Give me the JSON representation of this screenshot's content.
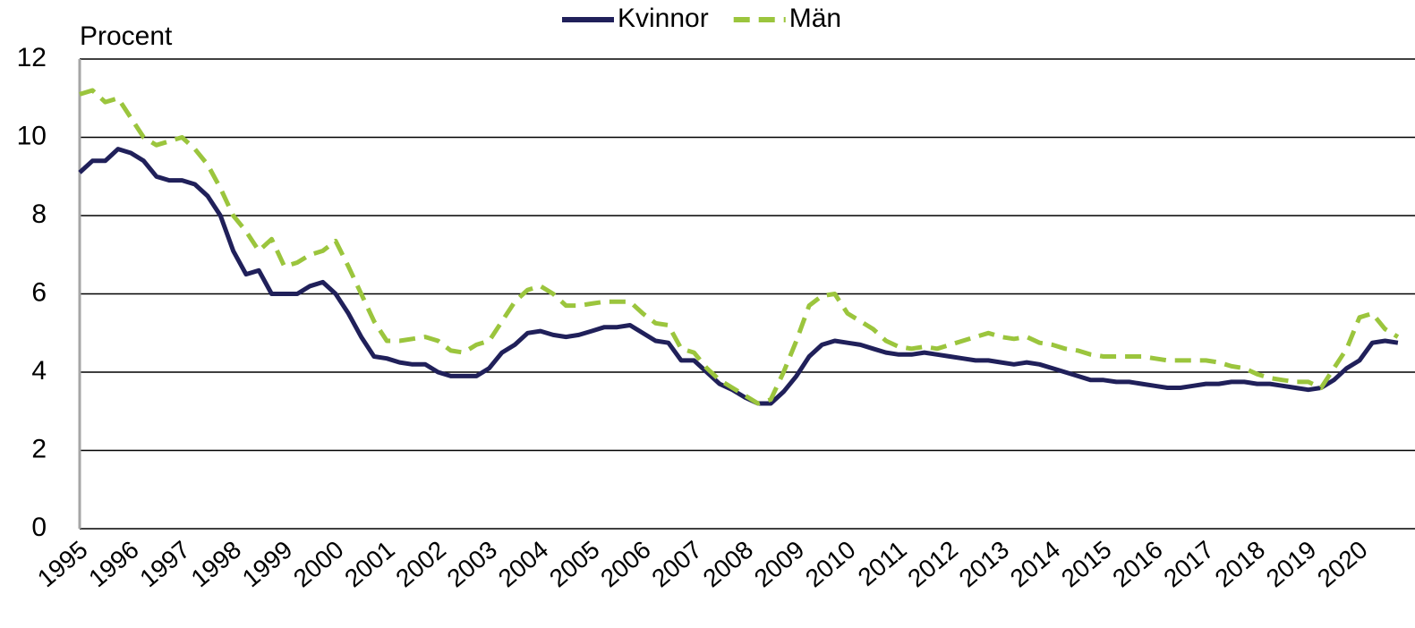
{
  "chart_data": {
    "type": "line",
    "y_label": "Procent",
    "categories": [
      "1995",
      null,
      null,
      null,
      "1996",
      null,
      null,
      null,
      "1997",
      null,
      null,
      null,
      "1998",
      null,
      null,
      null,
      "1999",
      null,
      null,
      null,
      "2000",
      null,
      null,
      null,
      "2001",
      null,
      null,
      null,
      "2002",
      null,
      null,
      null,
      "2003",
      null,
      null,
      null,
      "2004",
      null,
      null,
      null,
      "2005",
      null,
      null,
      null,
      "2006",
      null,
      null,
      null,
      "2007",
      null,
      null,
      null,
      "2008",
      null,
      null,
      null,
      "2009",
      null,
      null,
      null,
      "2010",
      null,
      null,
      null,
      "2011",
      null,
      null,
      null,
      "2012",
      null,
      null,
      null,
      "2013",
      null,
      null,
      null,
      "2014",
      null,
      null,
      null,
      "2015",
      null,
      null,
      null,
      "2016",
      null,
      null,
      null,
      "2017",
      null,
      null,
      null,
      "2018",
      null,
      null,
      null,
      "2019",
      null,
      null,
      null,
      "2020",
      null,
      null,
      null
    ],
    "series": [
      {
        "name": "Kvinnor",
        "color": "#20205a",
        "dash": false,
        "values": [
          9.1,
          9.4,
          9.4,
          9.7,
          9.6,
          9.4,
          9.0,
          8.9,
          8.9,
          8.8,
          8.5,
          8.0,
          7.1,
          6.5,
          6.6,
          6.0,
          6.0,
          6.0,
          6.2,
          6.3,
          6.0,
          5.5,
          4.9,
          4.4,
          4.35,
          4.25,
          4.2,
          4.2,
          4.0,
          3.9,
          3.9,
          3.9,
          4.1,
          4.5,
          4.7,
          5.0,
          5.05,
          4.95,
          4.9,
          4.95,
          5.05,
          5.15,
          5.15,
          5.2,
          5.0,
          4.8,
          4.75,
          4.3,
          4.3,
          4.0,
          3.7,
          3.55,
          3.35,
          3.2,
          3.2,
          3.5,
          3.9,
          4.4,
          4.7,
          4.8,
          4.75,
          4.7,
          4.6,
          4.5,
          4.45,
          4.45,
          4.5,
          4.45,
          4.4,
          4.35,
          4.3,
          4.3,
          4.25,
          4.2,
          4.25,
          4.2,
          4.1,
          4.0,
          3.9,
          3.8,
          3.8,
          3.75,
          3.75,
          3.7,
          3.65,
          3.6,
          3.6,
          3.65,
          3.7,
          3.7,
          3.75,
          3.75,
          3.7,
          3.7,
          3.65,
          3.6,
          3.55,
          3.6,
          3.8,
          4.1,
          4.3,
          4.75,
          4.8,
          4.75
        ]
      },
      {
        "name": "Män",
        "color": "#9bc53d",
        "dash": true,
        "values": [
          11.1,
          11.2,
          10.9,
          11.0,
          10.5,
          10.0,
          9.8,
          9.9,
          10.0,
          9.7,
          9.3,
          8.7,
          8.0,
          7.6,
          7.1,
          7.4,
          6.7,
          6.8,
          7.0,
          7.1,
          7.35,
          6.7,
          6.0,
          5.3,
          4.8,
          4.8,
          4.85,
          4.9,
          4.8,
          4.55,
          4.5,
          4.7,
          4.8,
          5.3,
          5.8,
          6.1,
          6.2,
          6.0,
          5.7,
          5.7,
          5.75,
          5.8,
          5.8,
          5.8,
          5.5,
          5.25,
          5.2,
          4.6,
          4.5,
          4.1,
          3.8,
          3.6,
          3.4,
          3.2,
          3.3,
          4.0,
          4.8,
          5.7,
          5.95,
          6.0,
          5.5,
          5.3,
          5.1,
          4.8,
          4.65,
          4.6,
          4.65,
          4.6,
          4.7,
          4.8,
          4.9,
          5.0,
          4.9,
          4.85,
          4.9,
          4.75,
          4.7,
          4.6,
          4.55,
          4.45,
          4.4,
          4.4,
          4.4,
          4.4,
          4.35,
          4.3,
          4.3,
          4.3,
          4.3,
          4.25,
          4.15,
          4.1,
          3.95,
          3.85,
          3.8,
          3.75,
          3.75,
          3.6,
          4.1,
          4.6,
          5.4,
          5.5,
          5.1,
          4.9
        ]
      }
    ],
    "ylim": [
      0,
      12
    ],
    "yticks": [
      0,
      2,
      4,
      6,
      8,
      10,
      12
    ],
    "grid": true
  }
}
